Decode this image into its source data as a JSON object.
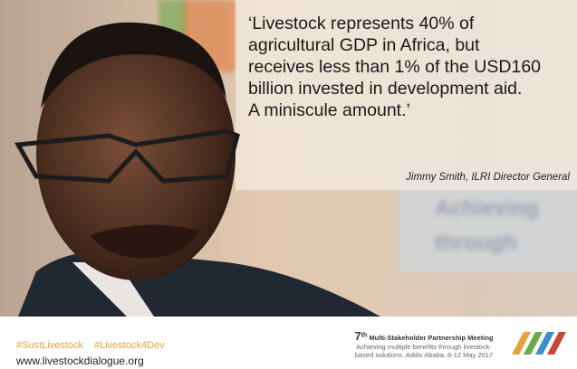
{
  "quote_lines": [
    "‘Livestock represents 40% of",
    "agricultural GDP in Africa, but",
    "receives less than 1% of the USD160",
    "billion invested in development aid.",
    " A miniscule amount.’"
  ],
  "attribution": "Jimmy Smith, ILRI Director General",
  "background_text": [
    "Achieving",
    "through"
  ],
  "footer": {
    "hashtags": [
      "#SustLivestock",
      "#Livestock4Dev"
    ],
    "website": "www.livestockdialogue.org",
    "meeting": {
      "number": "7",
      "ordinal_suffix": "th",
      "title": "Multi-Stakeholder Partnership Meeting",
      "subtitle_lines": [
        "Achieving multiple benefits through livestock-",
        "based solutions. Addis Ababa, 8-12 May 2017"
      ]
    }
  }
}
